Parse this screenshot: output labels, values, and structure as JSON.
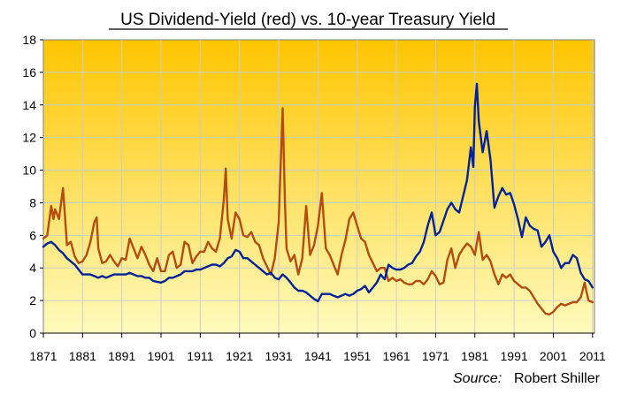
{
  "chart_data": {
    "type": "line",
    "title": "US Dividend-Yield (red) vs. 10-year Treasury Yield",
    "xlabel": "",
    "ylabel": "",
    "xlim": [
      1871,
      2011.5
    ],
    "ylim": [
      0,
      18
    ],
    "y_ticks": [
      0,
      2,
      4,
      6,
      8,
      10,
      12,
      14,
      16,
      18
    ],
    "x_ticks": [
      1871,
      1881,
      1891,
      1901,
      1911,
      1921,
      1931,
      1941,
      1951,
      1961,
      1971,
      1981,
      1991,
      2001,
      2011
    ],
    "grid": true,
    "background_gradient": [
      "#ffc500",
      "#fffbbd"
    ],
    "source": {
      "label": "Source:",
      "value": "Robert Shiller"
    },
    "series": [
      {
        "name": "US Dividend-Yield",
        "color": "#b34d0d",
        "points": [
          [
            1871,
            5.8
          ],
          [
            1872,
            6.0
          ],
          [
            1873,
            7.8
          ],
          [
            1873.6,
            7.0
          ],
          [
            1874,
            7.6
          ],
          [
            1875,
            7.0
          ],
          [
            1876,
            8.9
          ],
          [
            1876.8,
            6.2
          ],
          [
            1877,
            5.4
          ],
          [
            1878,
            5.6
          ],
          [
            1879,
            4.7
          ],
          [
            1880,
            4.3
          ],
          [
            1881,
            4.4
          ],
          [
            1882,
            4.8
          ],
          [
            1883,
            5.6
          ],
          [
            1884,
            6.8
          ],
          [
            1884.6,
            7.1
          ],
          [
            1885,
            5.2
          ],
          [
            1886,
            4.3
          ],
          [
            1887,
            4.4
          ],
          [
            1888,
            4.8
          ],
          [
            1889,
            4.4
          ],
          [
            1890,
            4.1
          ],
          [
            1891,
            4.6
          ],
          [
            1892,
            4.5
          ],
          [
            1893,
            5.8
          ],
          [
            1894,
            5.2
          ],
          [
            1895,
            4.6
          ],
          [
            1896,
            5.3
          ],
          [
            1897,
            4.8
          ],
          [
            1898,
            4.2
          ],
          [
            1899,
            3.8
          ],
          [
            1900,
            4.6
          ],
          [
            1901,
            3.8
          ],
          [
            1902,
            3.8
          ],
          [
            1903,
            4.8
          ],
          [
            1904,
            5.0
          ],
          [
            1905,
            4.0
          ],
          [
            1906,
            4.2
          ],
          [
            1907,
            5.6
          ],
          [
            1908,
            5.4
          ],
          [
            1909,
            4.3
          ],
          [
            1910,
            4.7
          ],
          [
            1911,
            5.0
          ],
          [
            1912,
            5.0
          ],
          [
            1913,
            5.6
          ],
          [
            1914,
            5.2
          ],
          [
            1915,
            5.0
          ],
          [
            1916,
            5.8
          ],
          [
            1917,
            8.2
          ],
          [
            1917.5,
            10.1
          ],
          [
            1918,
            7.0
          ],
          [
            1919,
            5.8
          ],
          [
            1920,
            7.4
          ],
          [
            1921,
            7.0
          ],
          [
            1922,
            6.0
          ],
          [
            1923,
            5.9
          ],
          [
            1924,
            6.2
          ],
          [
            1925,
            5.6
          ],
          [
            1926,
            5.4
          ],
          [
            1927,
            4.6
          ],
          [
            1928,
            4.1
          ],
          [
            1929,
            3.6
          ],
          [
            1930,
            4.6
          ],
          [
            1931,
            6.8
          ],
          [
            1932,
            13.8
          ],
          [
            1932.6,
            8.0
          ],
          [
            1933,
            5.2
          ],
          [
            1934,
            4.4
          ],
          [
            1935,
            4.8
          ],
          [
            1936,
            3.6
          ],
          [
            1937,
            4.6
          ],
          [
            1938,
            7.8
          ],
          [
            1939,
            4.8
          ],
          [
            1940,
            5.4
          ],
          [
            1941,
            6.6
          ],
          [
            1942,
            8.6
          ],
          [
            1943,
            5.2
          ],
          [
            1944,
            4.8
          ],
          [
            1945,
            4.2
          ],
          [
            1946,
            3.6
          ],
          [
            1947,
            4.8
          ],
          [
            1948,
            5.7
          ],
          [
            1949,
            7.0
          ],
          [
            1950,
            7.4
          ],
          [
            1951,
            6.6
          ],
          [
            1952,
            5.8
          ],
          [
            1953,
            5.6
          ],
          [
            1954,
            4.8
          ],
          [
            1955,
            4.3
          ],
          [
            1956,
            3.8
          ],
          [
            1957,
            4.0
          ],
          [
            1958,
            4.0
          ],
          [
            1959,
            3.2
          ],
          [
            1960,
            3.4
          ],
          [
            1961,
            3.2
          ],
          [
            1962,
            3.3
          ],
          [
            1963,
            3.1
          ],
          [
            1964,
            3.0
          ],
          [
            1965,
            3.0
          ],
          [
            1966,
            3.2
          ],
          [
            1967,
            3.2
          ],
          [
            1968,
            3.0
          ],
          [
            1969,
            3.3
          ],
          [
            1970,
            3.8
          ],
          [
            1971,
            3.5
          ],
          [
            1972,
            3.0
          ],
          [
            1973,
            3.1
          ],
          [
            1974,
            4.5
          ],
          [
            1975,
            5.2
          ],
          [
            1976,
            4.0
          ],
          [
            1977,
            4.8
          ],
          [
            1978,
            5.2
          ],
          [
            1979,
            5.5
          ],
          [
            1980,
            5.3
          ],
          [
            1981,
            4.8
          ],
          [
            1982,
            6.2
          ],
          [
            1983,
            4.5
          ],
          [
            1984,
            4.8
          ],
          [
            1985,
            4.4
          ],
          [
            1986,
            3.6
          ],
          [
            1987,
            3.0
          ],
          [
            1988,
            3.6
          ],
          [
            1989,
            3.4
          ],
          [
            1990,
            3.6
          ],
          [
            1991,
            3.2
          ],
          [
            1992,
            3.0
          ],
          [
            1993,
            2.8
          ],
          [
            1994,
            2.8
          ],
          [
            1995,
            2.6
          ],
          [
            1996,
            2.2
          ],
          [
            1997,
            1.8
          ],
          [
            1998,
            1.5
          ],
          [
            1999,
            1.2
          ],
          [
            2000,
            1.15
          ],
          [
            2001,
            1.3
          ],
          [
            2002,
            1.6
          ],
          [
            2003,
            1.8
          ],
          [
            2004,
            1.7
          ],
          [
            2005,
            1.8
          ],
          [
            2006,
            1.9
          ],
          [
            2007,
            1.9
          ],
          [
            2008,
            2.2
          ],
          [
            2009,
            3.1
          ],
          [
            2009.5,
            2.5
          ],
          [
            2010,
            2.0
          ],
          [
            2011,
            1.9
          ]
        ]
      },
      {
        "name": "10-year Treasury Yield",
        "color": "#002299",
        "points": [
          [
            1871,
            5.3
          ],
          [
            1872,
            5.5
          ],
          [
            1873,
            5.6
          ],
          [
            1874,
            5.4
          ],
          [
            1875,
            5.1
          ],
          [
            1876,
            4.9
          ],
          [
            1877,
            4.6
          ],
          [
            1878,
            4.4
          ],
          [
            1879,
            4.2
          ],
          [
            1880,
            3.9
          ],
          [
            1881,
            3.6
          ],
          [
            1882,
            3.6
          ],
          [
            1883,
            3.6
          ],
          [
            1884,
            3.5
          ],
          [
            1885,
            3.4
          ],
          [
            1886,
            3.5
          ],
          [
            1887,
            3.4
          ],
          [
            1888,
            3.5
          ],
          [
            1889,
            3.6
          ],
          [
            1890,
            3.6
          ],
          [
            1891,
            3.6
          ],
          [
            1892,
            3.6
          ],
          [
            1893,
            3.7
          ],
          [
            1894,
            3.6
          ],
          [
            1895,
            3.5
          ],
          [
            1896,
            3.5
          ],
          [
            1897,
            3.4
          ],
          [
            1898,
            3.4
          ],
          [
            1899,
            3.2
          ],
          [
            1900,
            3.15
          ],
          [
            1901,
            3.1
          ],
          [
            1902,
            3.2
          ],
          [
            1903,
            3.4
          ],
          [
            1904,
            3.4
          ],
          [
            1905,
            3.5
          ],
          [
            1906,
            3.6
          ],
          [
            1907,
            3.8
          ],
          [
            1908,
            3.8
          ],
          [
            1909,
            3.8
          ],
          [
            1910,
            3.9
          ],
          [
            1911,
            3.9
          ],
          [
            1912,
            4.0
          ],
          [
            1913,
            4.1
          ],
          [
            1914,
            4.2
          ],
          [
            1915,
            4.2
          ],
          [
            1916,
            4.1
          ],
          [
            1917,
            4.3
          ],
          [
            1918,
            4.6
          ],
          [
            1919,
            4.7
          ],
          [
            1920,
            5.1
          ],
          [
            1921,
            5.0
          ],
          [
            1922,
            4.6
          ],
          [
            1923,
            4.6
          ],
          [
            1924,
            4.4
          ],
          [
            1925,
            4.2
          ],
          [
            1926,
            4.0
          ],
          [
            1927,
            3.8
          ],
          [
            1928,
            3.6
          ],
          [
            1929,
            3.7
          ],
          [
            1930,
            3.4
          ],
          [
            1931,
            3.3
          ],
          [
            1932,
            3.6
          ],
          [
            1933,
            3.4
          ],
          [
            1934,
            3.1
          ],
          [
            1935,
            2.8
          ],
          [
            1936,
            2.6
          ],
          [
            1937,
            2.6
          ],
          [
            1938,
            2.5
          ],
          [
            1939,
            2.3
          ],
          [
            1940,
            2.1
          ],
          [
            1941,
            1.95
          ],
          [
            1942,
            2.4
          ],
          [
            1943,
            2.4
          ],
          [
            1944,
            2.4
          ],
          [
            1945,
            2.3
          ],
          [
            1946,
            2.2
          ],
          [
            1947,
            2.3
          ],
          [
            1948,
            2.4
          ],
          [
            1949,
            2.3
          ],
          [
            1950,
            2.4
          ],
          [
            1951,
            2.6
          ],
          [
            1952,
            2.7
          ],
          [
            1953,
            2.9
          ],
          [
            1954,
            2.5
          ],
          [
            1955,
            2.8
          ],
          [
            1956,
            3.1
          ],
          [
            1957,
            3.6
          ],
          [
            1958,
            3.3
          ],
          [
            1959,
            4.2
          ],
          [
            1960,
            4.0
          ],
          [
            1961,
            3.9
          ],
          [
            1962,
            3.9
          ],
          [
            1963,
            4.0
          ],
          [
            1964,
            4.2
          ],
          [
            1965,
            4.3
          ],
          [
            1966,
            4.7
          ],
          [
            1967,
            5.0
          ],
          [
            1968,
            5.6
          ],
          [
            1969,
            6.6
          ],
          [
            1970,
            7.4
          ],
          [
            1971,
            6.0
          ],
          [
            1972,
            6.2
          ],
          [
            1973,
            6.9
          ],
          [
            1974,
            7.6
          ],
          [
            1975,
            8.0
          ],
          [
            1976,
            7.6
          ],
          [
            1977,
            7.4
          ],
          [
            1978,
            8.4
          ],
          [
            1979,
            9.4
          ],
          [
            1980,
            11.4
          ],
          [
            1980.6,
            10.2
          ],
          [
            1981,
            13.9
          ],
          [
            1981.5,
            15.3
          ],
          [
            1982,
            13.0
          ],
          [
            1983,
            11.1
          ],
          [
            1984,
            12.4
          ],
          [
            1985,
            10.6
          ],
          [
            1986,
            7.7
          ],
          [
            1987,
            8.4
          ],
          [
            1988,
            8.9
          ],
          [
            1989,
            8.5
          ],
          [
            1990,
            8.6
          ],
          [
            1991,
            7.9
          ],
          [
            1992,
            7.0
          ],
          [
            1993,
            5.9
          ],
          [
            1994,
            7.1
          ],
          [
            1995,
            6.6
          ],
          [
            1996,
            6.4
          ],
          [
            1997,
            6.3
          ],
          [
            1998,
            5.3
          ],
          [
            1999,
            5.6
          ],
          [
            2000,
            6.0
          ],
          [
            2001,
            5.0
          ],
          [
            2002,
            4.6
          ],
          [
            2003,
            4.0
          ],
          [
            2004,
            4.3
          ],
          [
            2005,
            4.3
          ],
          [
            2006,
            4.8
          ],
          [
            2007,
            4.6
          ],
          [
            2008,
            3.7
          ],
          [
            2009,
            3.3
          ],
          [
            2010,
            3.2
          ],
          [
            2011,
            2.8
          ]
        ]
      }
    ]
  }
}
